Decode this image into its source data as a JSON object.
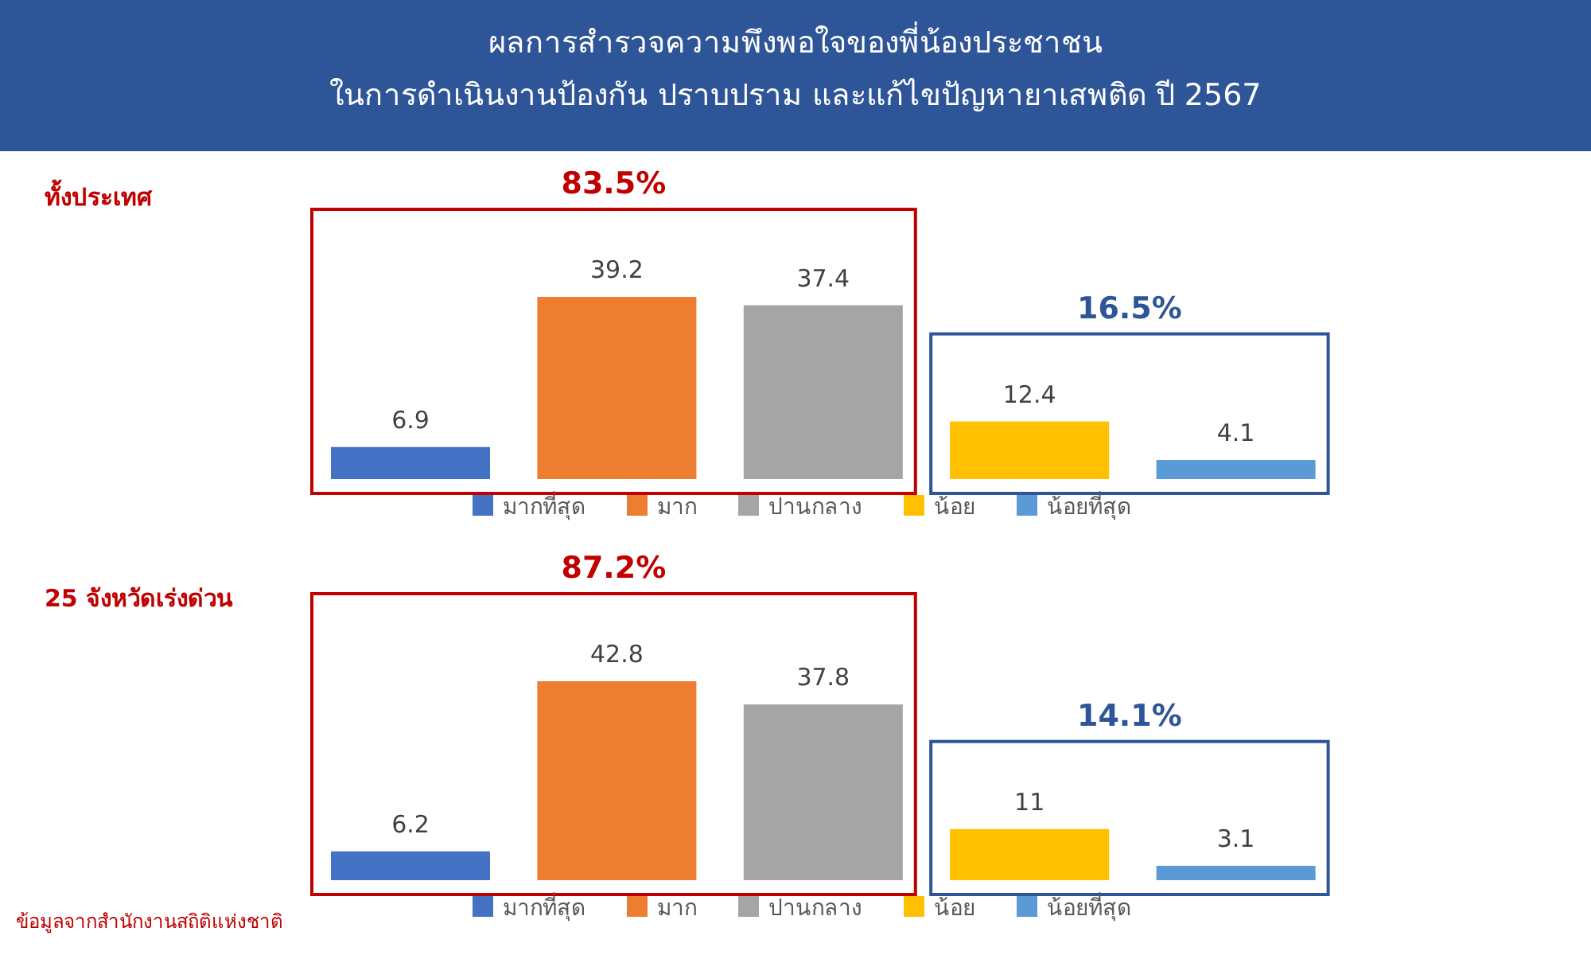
{
  "chart_data": [
    {
      "type": "bar",
      "title": "ผลการสำรวจความพึงพอใจของพี่น้องประชาชน\nในการดำเนินงานป้องกัน ปราบปราม และแก้ไขปัญหายาเสพติด ปี 2567",
      "subtitle": "ทั้งประเทศ",
      "categories": [
        null
      ],
      "data_labels": true,
      "legend": "bottom",
      "annotations": [
        "83.5%",
        "16.5%"
      ],
      "series": [
        {
          "name": "มากที่สุด",
          "color": "#4472c4",
          "values": [
            6.9
          ]
        },
        {
          "name": "มาก",
          "color": "#ed7d31",
          "values": [
            39.2
          ]
        },
        {
          "name": "ปานกลาง",
          "color": "#a5a5a5",
          "values": [
            37.4
          ]
        },
        {
          "name": "น้อย",
          "color": "#ffc000",
          "values": [
            12.4
          ]
        },
        {
          "name": "น้อยที่สุด",
          "color": "#5b9bd5",
          "values": [
            4.1
          ]
        }
      ]
    },
    {
      "type": "bar",
      "subtitle": "25 จังหวัดเร่งด่วน",
      "categories": [
        null
      ],
      "data_labels": true,
      "legend": "bottom",
      "annotations": [
        "87.2%",
        "14.1%",
        "ข้อมูลจากสำนักงานสถิติแห่งชาติ"
      ],
      "series": [
        {
          "name": "มากที่สุด",
          "color": "#4472c4",
          "values": [
            6.2
          ]
        },
        {
          "name": "มาก",
          "color": "#ed7d31",
          "values": [
            42.8
          ]
        },
        {
          "name": "ปานกลาง",
          "color": "#a5a5a5",
          "values": [
            37.8
          ]
        },
        {
          "name": "น้อย",
          "color": "#ffc000",
          "values": [
            11
          ]
        },
        {
          "name": "น้อยที่สุด",
          "color": "#5b9bd5",
          "values": [
            3.1
          ]
        }
      ]
    }
  ]
}
